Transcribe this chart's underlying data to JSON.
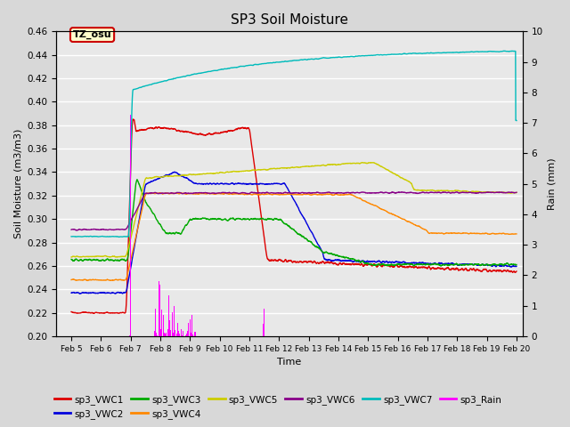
{
  "title": "SP3 Soil Moisture",
  "xlabel": "Time",
  "ylabel_left": "Soil Moisture (m3/m3)",
  "ylabel_right": "Rain (mm)",
  "ylim_left": [
    0.2,
    0.46
  ],
  "ylim_right": [
    0.0,
    10.0
  ],
  "xlim": [
    4.5,
    20.2
  ],
  "xtick_positions": [
    5,
    6,
    7,
    8,
    9,
    10,
    11,
    12,
    13,
    14,
    15,
    16,
    17,
    18,
    19,
    20
  ],
  "xtick_labels": [
    "Feb 5",
    "Feb 6",
    "Feb 7",
    "Feb 8",
    "Feb 9",
    "Feb 10",
    "Feb 11",
    "Feb 12",
    "Feb 13",
    "Feb 14",
    "Feb 15",
    "Feb 16",
    "Feb 17",
    "Feb 18",
    "Feb 19",
    "Feb 20"
  ],
  "ytick_left": [
    0.2,
    0.22,
    0.24,
    0.26,
    0.28,
    0.3,
    0.32,
    0.34,
    0.36,
    0.38,
    0.4,
    0.42,
    0.44,
    0.46
  ],
  "ytick_right": [
    0.0,
    1.0,
    2.0,
    3.0,
    4.0,
    5.0,
    6.0,
    7.0,
    8.0,
    9.0,
    10.0
  ],
  "fig_facecolor": "#d8d8d8",
  "ax_facecolor": "#e8e8e8",
  "grid_color": "#ffffff",
  "annotation_text": "TZ_osu",
  "annotation_facecolor": "#ffffcc",
  "annotation_edgecolor": "#cc0000",
  "colors": {
    "VWC1": "#dd0000",
    "VWC2": "#0000dd",
    "VWC3": "#00aa00",
    "VWC4": "#ff8800",
    "VWC5": "#cccc00",
    "VWC6": "#880088",
    "VWC7": "#00bbbb",
    "Rain": "#ff00ff"
  },
  "lw": 1.0
}
